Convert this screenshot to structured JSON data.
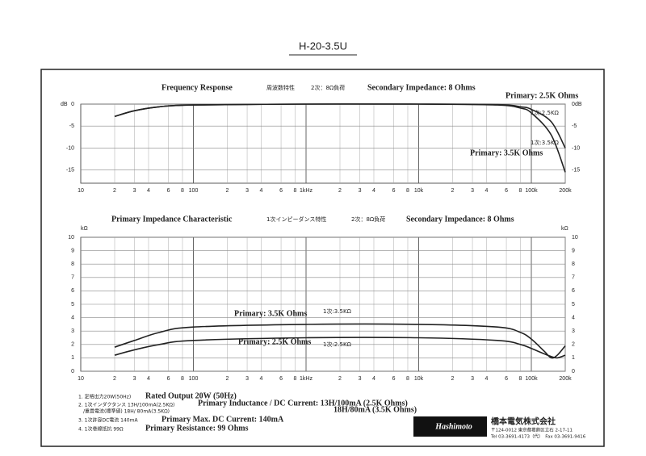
{
  "title": "H-20-3.5U",
  "chart_data": [
    {
      "type": "line",
      "title": "Frequency Response",
      "title_ja": "周波数特性",
      "load_ja": "2次：8Ω負荷",
      "secondary": "Secondary Impedance: 8 Ohms",
      "y_unit": "dB",
      "xscale": "log",
      "grid": true,
      "xlim": [
        10,
        200000
      ],
      "ylim": [
        -18,
        0
      ],
      "yticks": [
        0,
        -5,
        -10,
        -15
      ],
      "xticks": [
        10,
        {
          "value": 20,
          "label": "2"
        },
        {
          "value": 30,
          "label": "3"
        },
        {
          "value": 40,
          "label": "4"
        },
        {
          "value": 60,
          "label": "6"
        },
        {
          "value": 80,
          "label": "8"
        },
        100,
        {
          "value": 200,
          "label": "2"
        },
        {
          "value": 300,
          "label": "3"
        },
        {
          "value": 400,
          "label": "4"
        },
        {
          "value": 600,
          "label": "6"
        },
        {
          "value": 800,
          "label": "8"
        },
        {
          "value": 1000,
          "label": "1kHz"
        },
        {
          "value": 2000,
          "label": "2"
        },
        {
          "value": 3000,
          "label": "3"
        },
        {
          "value": 4000,
          "label": "4"
        },
        {
          "value": 6000,
          "label": "6"
        },
        {
          "value": 8000,
          "label": "8"
        },
        {
          "value": 10000,
          "label": "10k"
        },
        {
          "value": 20000,
          "label": "2"
        },
        {
          "value": 30000,
          "label": "3"
        },
        {
          "value": 40000,
          "label": "4"
        },
        {
          "value": 60000,
          "label": "6"
        },
        {
          "value": 80000,
          "label": "8"
        },
        {
          "value": 100000,
          "label": "100k"
        },
        {
          "value": 200000,
          "label": "200k"
        }
      ],
      "x": [
        20,
        30,
        50,
        100,
        1000,
        10000,
        50000,
        80000,
        100000,
        150000,
        200000
      ],
      "series": [
        {
          "name": "Primary: 2.5K Ohms",
          "label_ja": "1次:2.5KΩ",
          "color": "#222222",
          "values": [
            -2.8,
            -1.5,
            -0.6,
            -0.2,
            0,
            0,
            -0.1,
            -0.6,
            -1.2,
            -4,
            -10
          ]
        },
        {
          "name": "Primary: 3.5K Ohms",
          "label_ja": "1次:3.5KΩ",
          "color": "#222222",
          "values": [
            -2.8,
            -1.5,
            -0.6,
            -0.2,
            0,
            0,
            -0.2,
            -0.9,
            -2,
            -7,
            -15.5
          ]
        }
      ]
    },
    {
      "type": "line",
      "title": "Primary Impedance Characteristic",
      "title_ja": "1次インピーダンス特性",
      "load_ja": "2次：8Ω負荷",
      "secondary": "Secondary Impedance: 8 Ohms",
      "y_unit": "kΩ",
      "xscale": "log",
      "grid": true,
      "xlim": [
        10,
        200000
      ],
      "ylim": [
        0,
        10
      ],
      "yticks": [
        0,
        1,
        2,
        3,
        4,
        5,
        6,
        7,
        8,
        9,
        10
      ],
      "xticks": [
        10,
        {
          "value": 20,
          "label": "2"
        },
        {
          "value": 30,
          "label": "3"
        },
        {
          "value": 40,
          "label": "4"
        },
        {
          "value": 60,
          "label": "6"
        },
        {
          "value": 80,
          "label": "8"
        },
        100,
        {
          "value": 200,
          "label": "2"
        },
        {
          "value": 300,
          "label": "3"
        },
        {
          "value": 400,
          "label": "4"
        },
        {
          "value": 600,
          "label": "6"
        },
        {
          "value": 800,
          "label": "8"
        },
        {
          "value": 1000,
          "label": "1kHz"
        },
        {
          "value": 2000,
          "label": "2"
        },
        {
          "value": 3000,
          "label": "3"
        },
        {
          "value": 4000,
          "label": "4"
        },
        {
          "value": 6000,
          "label": "6"
        },
        {
          "value": 8000,
          "label": "8"
        },
        {
          "value": 10000,
          "label": "10k"
        },
        {
          "value": 20000,
          "label": "2"
        },
        {
          "value": 30000,
          "label": "3"
        },
        {
          "value": 40000,
          "label": "4"
        },
        {
          "value": 60000,
          "label": "6"
        },
        {
          "value": 80000,
          "label": "8"
        },
        {
          "value": 100000,
          "label": "100k"
        },
        {
          "value": 200000,
          "label": "200k"
        }
      ],
      "x": [
        20,
        30,
        50,
        100,
        1000,
        10000,
        50000,
        80000,
        100000,
        130000,
        150000,
        170000,
        200000
      ],
      "series": [
        {
          "name": "Primary: 3.5K Ohms",
          "label_ja": "1次:3.5KΩ",
          "color": "#222222",
          "values": [
            1.8,
            2.3,
            2.9,
            3.3,
            3.5,
            3.5,
            3.3,
            2.9,
            2.4,
            1.5,
            1.0,
            1.2,
            1.9
          ]
        },
        {
          "name": "Primary: 2.5K Ohms",
          "label_ja": "1次:2.5KΩ",
          "color": "#222222",
          "values": [
            1.2,
            1.6,
            2.0,
            2.3,
            2.5,
            2.5,
            2.3,
            2.0,
            1.7,
            1.3,
            1.1,
            1.0,
            1.2
          ]
        }
      ]
    }
  ],
  "specs": [
    {
      "ja": [
        "1. 定格出力20W(50Hz)"
      ],
      "en": [
        "Rated Output 20W (50Hz)"
      ]
    },
    {
      "ja": [
        "2. 1次インダクタンス 13H/100mA(2.5KΩ)",
        "/重畳電流(標準値) 18H/ 80mA(3.5KΩ)"
      ],
      "en": [
        "Primary Inductance / DC Current: 13H/100mA (2.5K Ohms)",
        "18H/80mA (3.5K Ohms)"
      ]
    },
    {
      "ja": [
        "3. 1次許容DC電流 140mA"
      ],
      "en": [
        "Primary Max. DC Current: 140mA"
      ]
    },
    {
      "ja": [
        "4. 1次巻線抵抗 99Ω"
      ],
      "en": [
        "Primary Resistance: 99 Ohms"
      ]
    }
  ],
  "company": {
    "logo": "Hashimoto",
    "name": "橋本電気株式会社",
    "address": "〒124-0012 東京都葛飾区立石 2-17-11",
    "tel": "Tel 03-3691-4173（代）　Fax 03-3691-9416"
  }
}
